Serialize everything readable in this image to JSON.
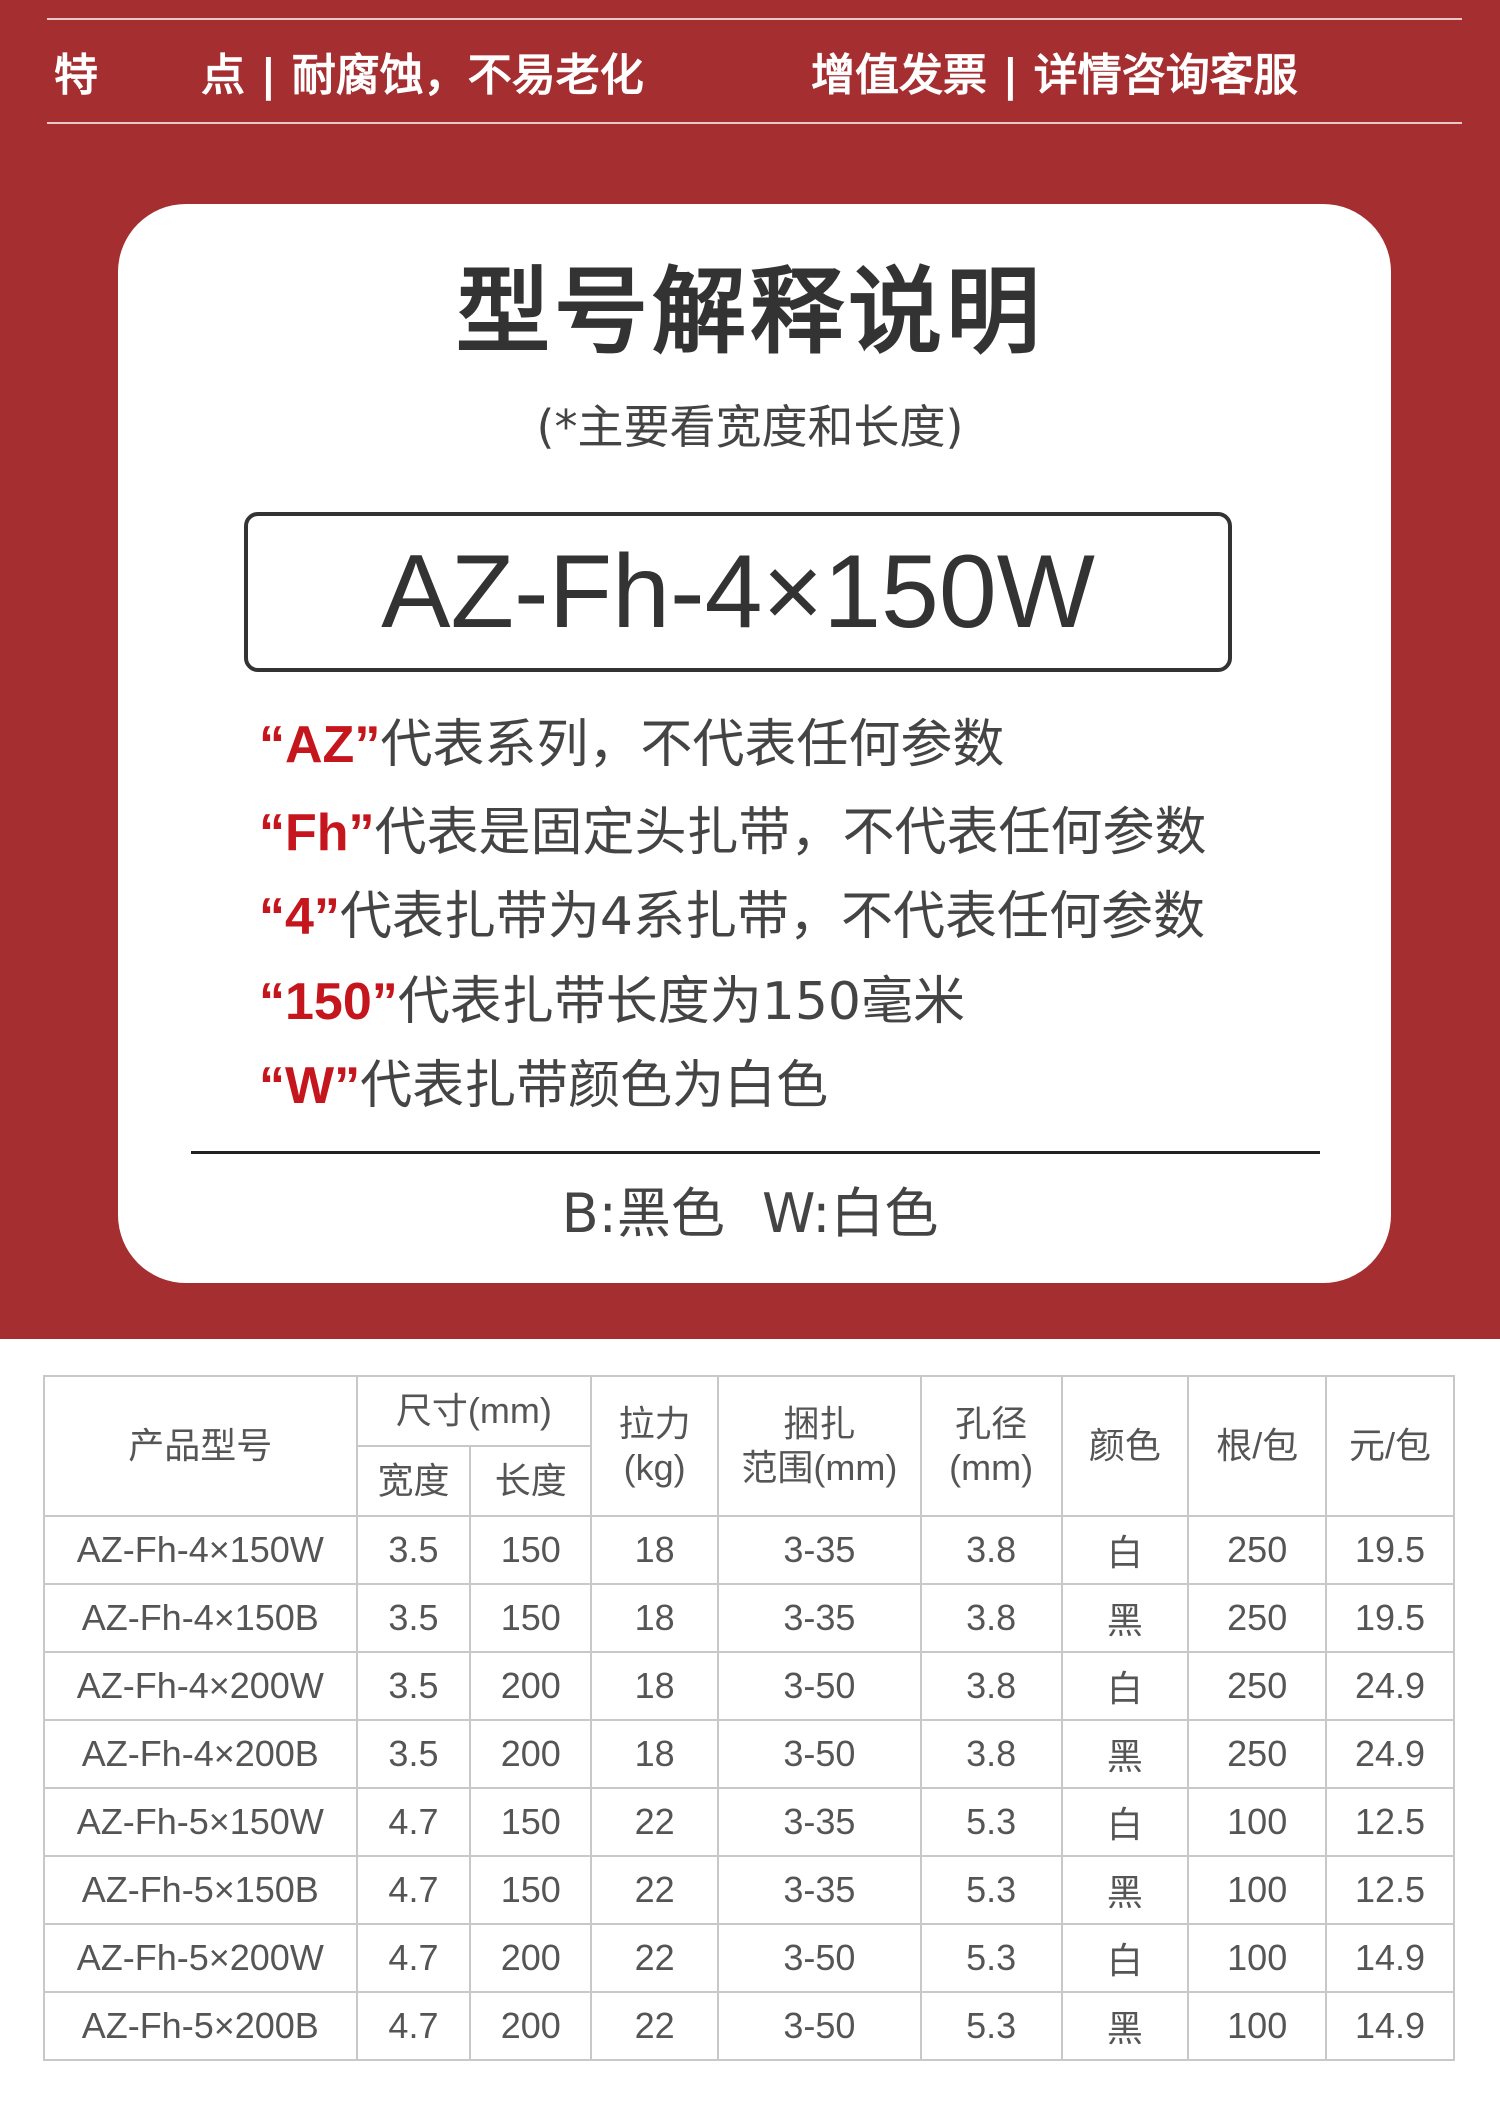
{
  "colors": {
    "background_red": "#a52e31",
    "accent_red": "#c4161c",
    "text_dark": "#333333"
  },
  "features": {
    "left_label_1": "特",
    "left_label_2": "点 | 耐腐蚀，不易老化",
    "right": "增值发票 | 详情咨询客服"
  },
  "card": {
    "title": "型号解释说明",
    "subtitle": "(*主要看宽度和长度)",
    "model": "AZ-Fh-4×150W",
    "explanations": [
      {
        "code": "“AZ”",
        "text": "代表系列，不代表任何参数"
      },
      {
        "code": "“Fh”",
        "text": "代表是固定头扎带，不代表任何参数"
      },
      {
        "code": "“4”",
        "text": "代表扎带为4系扎带，不代表任何参数"
      },
      {
        "code": "“150”",
        "text": "代表扎带长度为150毫米"
      },
      {
        "code": "“W”",
        "text": "代表扎带颜色为白色"
      }
    ],
    "legend": "B:黑色 W:白色"
  },
  "table": {
    "headers": {
      "model": "产品型号",
      "size": "尺寸(mm)",
      "width": "宽度",
      "length": "长度",
      "tension": "拉力",
      "tension_unit": "(kg)",
      "range": "捆扎",
      "range_unit": "范围(mm)",
      "hole": "孔径",
      "hole_unit": "(mm)",
      "color": "颜色",
      "per_pack": "根/包",
      "price": "元/包"
    },
    "rows": [
      [
        "AZ-Fh-4×150W",
        "3.5",
        "150",
        "18",
        "3-35",
        "3.8",
        "白",
        "250",
        "19.5"
      ],
      [
        "AZ-Fh-4×150B",
        "3.5",
        "150",
        "18",
        "3-35",
        "3.8",
        "黑",
        "250",
        "19.5"
      ],
      [
        "AZ-Fh-4×200W",
        "3.5",
        "200",
        "18",
        "3-50",
        "3.8",
        "白",
        "250",
        "24.9"
      ],
      [
        "AZ-Fh-4×200B",
        "3.5",
        "200",
        "18",
        "3-50",
        "3.8",
        "黑",
        "250",
        "24.9"
      ],
      [
        "AZ-Fh-5×150W",
        "4.7",
        "150",
        "22",
        "3-35",
        "5.3",
        "白",
        "100",
        "12.5"
      ],
      [
        "AZ-Fh-5×150B",
        "4.7",
        "150",
        "22",
        "3-35",
        "5.3",
        "黑",
        "100",
        "12.5"
      ],
      [
        "AZ-Fh-5×200W",
        "4.7",
        "200",
        "22",
        "3-50",
        "5.3",
        "白",
        "100",
        "14.9"
      ],
      [
        "AZ-Fh-5×200B",
        "4.7",
        "200",
        "22",
        "3-50",
        "5.3",
        "黑",
        "100",
        "14.9"
      ]
    ]
  }
}
